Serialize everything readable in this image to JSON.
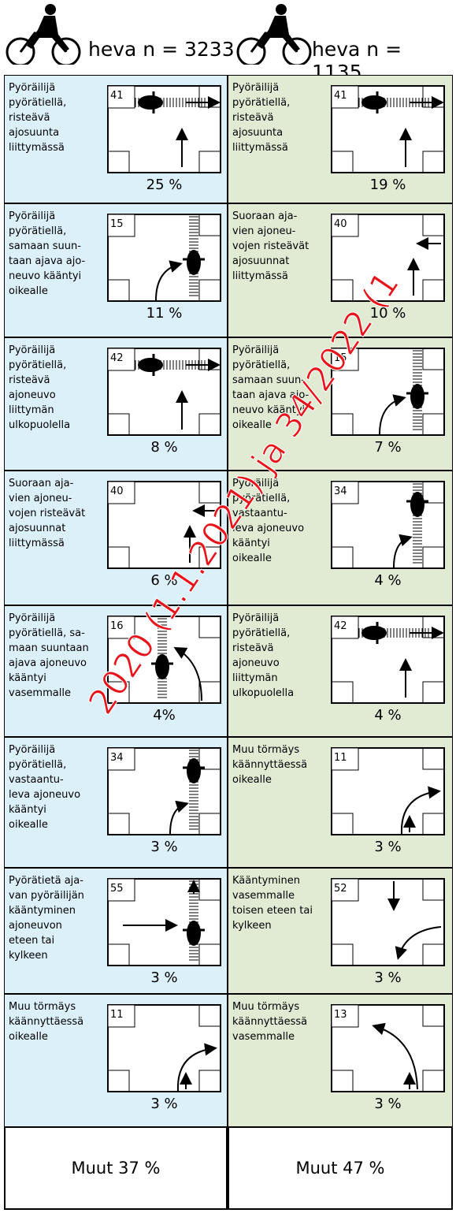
{
  "header": {
    "columns": [
      "heva n = 3233",
      "heva n = 1135"
    ]
  },
  "columns": [
    {
      "cells": [
        {
          "code": "41",
          "lines": [
            "Pyöräilijä",
            "pyörätiellä,",
            "risteävä",
            "ajosuunta",
            "liittymässä"
          ],
          "percent": "25 %"
        },
        {
          "code": "15",
          "lines": [
            "Pyöräilijä",
            "pyörätiellä,",
            "samaan suun-",
            "taan ajava ajo-",
            "neuvo kääntyi",
            "oikealle"
          ],
          "percent": "11 %"
        },
        {
          "code": "42",
          "lines": [
            "Pyöräilijä",
            "pyörätiellä,",
            "risteävä",
            "ajoneuvo",
            "liittymän",
            "ulkopuolella"
          ],
          "percent": "8 %"
        },
        {
          "code": "40",
          "lines": [
            "Suoraan aja-",
            "vien ajoneu-",
            "vojen risteävät",
            "ajosuunnat",
            "liittymässä"
          ],
          "percent": "6 %"
        },
        {
          "code": "16",
          "lines": [
            "Pyöräilijä",
            "pyörätiellä, sa-",
            "maan suuntaan",
            "ajava ajoneuvo",
            "kääntyi",
            "vasemmalle"
          ],
          "percent": "4%"
        },
        {
          "code": "34",
          "lines": [
            "Pyöräilijä",
            "pyörätiellä,",
            "vastaantu-",
            "leva ajoneuvo",
            "kääntyi",
            "oikealle"
          ],
          "percent": "3 %"
        },
        {
          "code": "55",
          "lines": [
            "Pyörätietä aja-",
            "van pyöräilijän",
            "kääntyminen",
            "ajoneuvon",
            "eteen tai",
            "kylkeen"
          ],
          "percent": "3 %"
        },
        {
          "code": "11",
          "lines": [
            "Muu törmäys",
            "käännyttäessä",
            "oikealle"
          ],
          "percent": "3 %"
        }
      ],
      "other": "Muut 37 %"
    },
    {
      "cells": [
        {
          "code": "41",
          "lines": [
            "Pyöräilijä",
            "pyörätiellä,",
            "risteävä",
            "ajosuunta",
            "liittymässä"
          ],
          "percent": "19 %"
        },
        {
          "code": "40",
          "lines": [
            "Suoraan aja-",
            "vien ajoneu-",
            "vojen risteävät",
            "ajosuunnat",
            "liittymässä"
          ],
          "percent": "10 %"
        },
        {
          "code": "15",
          "lines": [
            "Pyöräilijä",
            "pyörätiellä,",
            "samaan suun-",
            "taan ajava ajo-",
            "neuvo kääntyi",
            "oikealle"
          ],
          "percent": "7 %"
        },
        {
          "code": "34",
          "lines": [
            "Pyöräilijä",
            "pyörätiellä,",
            "vastaantu-",
            "leva ajoneuvo",
            "kääntyi",
            "oikealle"
          ],
          "percent": "4 %"
        },
        {
          "code": "42",
          "lines": [
            "Pyöräilijä",
            "pyörätiellä,",
            "risteävä",
            "ajoneuvo",
            "liittymän",
            "ulkopuolella"
          ],
          "percent": "4 %"
        },
        {
          "code": "11",
          "lines": [
            "Muu törmäys",
            "käännyttäessä",
            "oikealle"
          ],
          "percent": "3 %"
        },
        {
          "code": "52",
          "lines": [
            "Kääntyminen",
            "vasemmalle",
            "toisen eteen tai",
            "kylkeen"
          ],
          "percent": "3 %"
        },
        {
          "code": "13",
          "lines": [
            "Muu törmäys",
            "käännyttäessä",
            "vasemmalle"
          ],
          "percent": "3 %"
        }
      ],
      "other": "Muut 47 %"
    }
  ],
  "watermark": "2020 (1.1.2021) ja 34/2022 (1"
}
